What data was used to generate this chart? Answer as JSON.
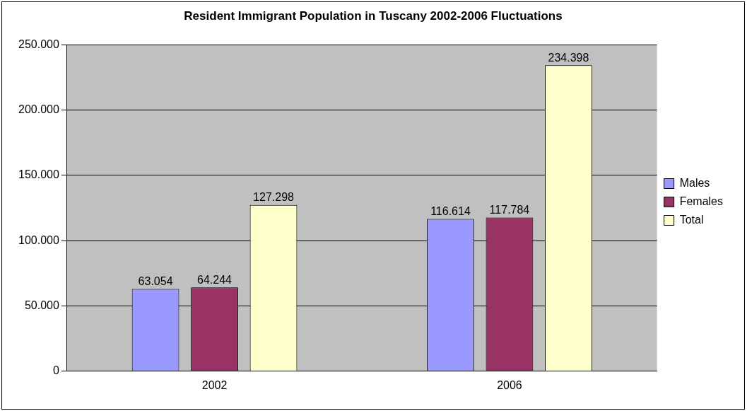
{
  "chart_data": {
    "type": "bar",
    "title": "Resident Immigrant Population in Tuscany 2002-2006 Fluctuations",
    "categories": [
      "2002",
      "2006"
    ],
    "series": [
      {
        "name": "Males",
        "color": "#9999ff",
        "values": [
          63054,
          116614
        ],
        "value_labels": [
          "63.054",
          "116.614"
        ]
      },
      {
        "name": "Females",
        "color": "#993366",
        "values": [
          64244,
          117784
        ],
        "value_labels": [
          "64.244",
          "117.784"
        ]
      },
      {
        "name": "Total",
        "color": "#ffffcc",
        "values": [
          127298,
          234398
        ],
        "value_labels": [
          "127.298",
          "234.398"
        ]
      }
    ],
    "ylim": [
      0,
      250000
    ],
    "yticks": [
      {
        "value": 0,
        "label": "0"
      },
      {
        "value": 50000,
        "label": "50.000"
      },
      {
        "value": 100000,
        "label": "100.000"
      },
      {
        "value": 150000,
        "label": "150.000"
      },
      {
        "value": 200000,
        "label": "200.000"
      },
      {
        "value": 250000,
        "label": "250.000"
      }
    ],
    "grid": "y",
    "legend": "right"
  }
}
